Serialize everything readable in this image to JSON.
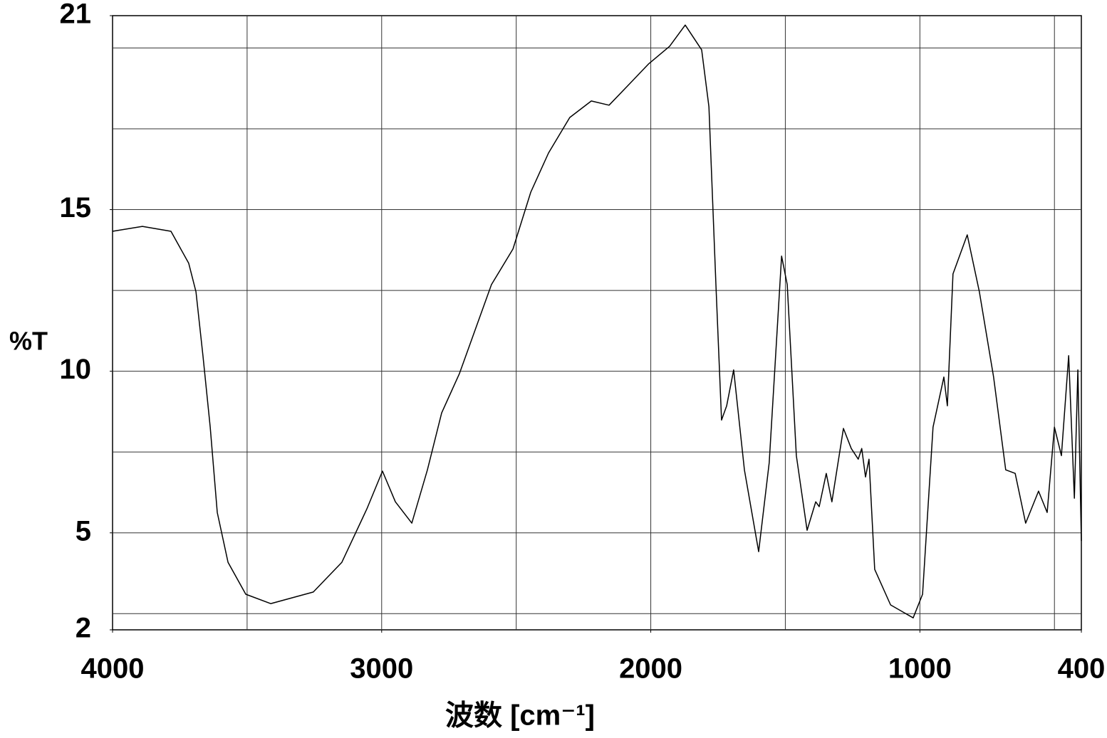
{
  "chart_data": {
    "type": "line",
    "ylabel": "%T",
    "xlabel": "波数 [cm⁻¹]",
    "xlim": [
      4000,
      400
    ],
    "ylim": [
      2,
      21
    ],
    "xticks": [
      4000,
      3000,
      2000,
      1000,
      400
    ],
    "yticks": [
      2,
      5,
      10,
      15,
      21
    ],
    "xgrid": [
      3500,
      3000,
      2500,
      2000,
      1500,
      1000,
      500
    ],
    "ygrid": [
      2.5,
      5,
      7.5,
      10,
      12.5,
      15,
      17.5,
      20
    ],
    "grid": true,
    "series": [
      {
        "color": "#000000",
        "x": [
          4000,
          3889,
          3783,
          3717,
          3690,
          3664,
          3637,
          3611,
          3571,
          3505,
          3412,
          3254,
          3148,
          3055,
          2997,
          2949,
          2888,
          2830,
          2777,
          2711,
          2592,
          2512,
          2446,
          2380,
          2301,
          2221,
          2155,
          2089,
          2009,
          1930,
          1872,
          1811,
          1784,
          1758,
          1737,
          1718,
          1692,
          1652,
          1599,
          1560,
          1514,
          1493,
          1459,
          1419,
          1387,
          1374,
          1348,
          1327,
          1284,
          1255,
          1229,
          1216,
          1202,
          1189,
          1168,
          1109,
          1025,
          990,
          951,
          911,
          898,
          877,
          824,
          779,
          726,
          681,
          646,
          607,
          559,
          527,
          500,
          474,
          447,
          426,
          413,
          400
        ],
        "values": [
          14.33,
          14.48,
          14.33,
          13.34,
          12.46,
          10.48,
          8.27,
          5.63,
          4.09,
          3.1,
          2.81,
          3.17,
          4.09,
          5.74,
          6.91,
          5.96,
          5.3,
          6.95,
          8.71,
          9.93,
          12.68,
          13.78,
          15.54,
          16.75,
          17.85,
          18.36,
          18.23,
          18.8,
          19.5,
          20.05,
          20.71,
          19.94,
          18.18,
          12.68,
          8.49,
          8.93,
          10.04,
          6.95,
          4.42,
          7.17,
          13.56,
          12.68,
          7.39,
          5.08,
          5.96,
          5.81,
          6.84,
          5.96,
          8.23,
          7.61,
          7.28,
          7.61,
          6.73,
          7.28,
          3.87,
          2.77,
          2.37,
          3.1,
          8.27,
          9.82,
          8.93,
          13.01,
          14.22,
          12.46,
          9.82,
          6.95,
          6.84,
          5.3,
          6.29,
          5.63,
          8.27,
          7.39,
          10.48,
          6.07,
          10.04,
          4.75
        ]
      }
    ]
  }
}
